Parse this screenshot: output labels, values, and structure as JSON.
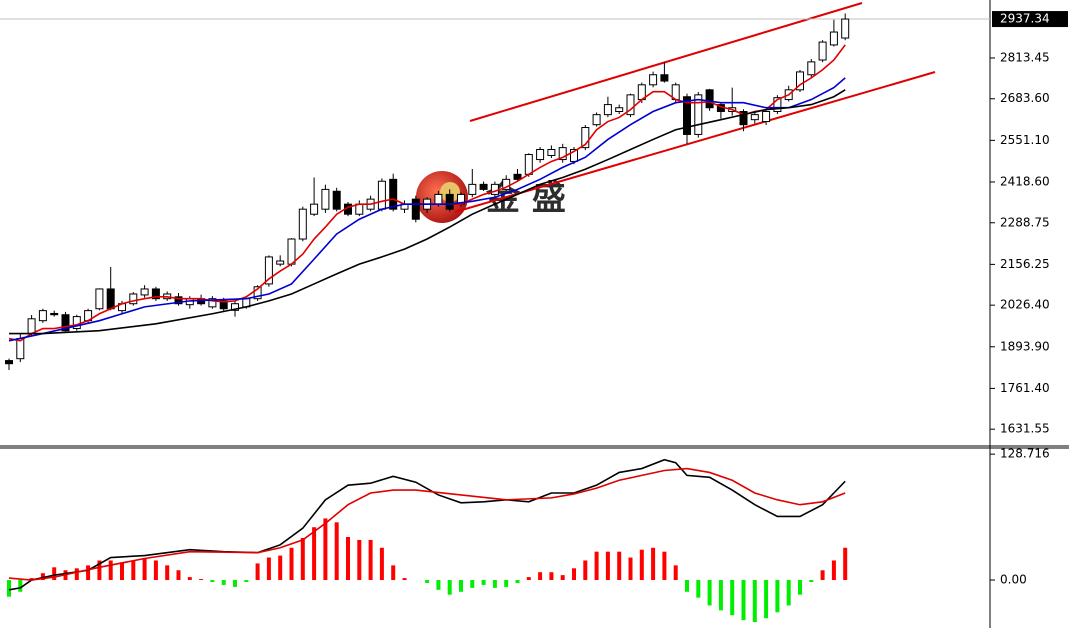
{
  "watermark": "金 盛",
  "chart_data": [
    {
      "type": "candlestick",
      "ylim": [
        1578,
        2998
      ],
      "yticks": [
        1631.55,
        {
          "value": 1761.4,
          "label": "1761.40"
        },
        {
          "value": 1893.9,
          "label": "1893.90"
        },
        {
          "value": 2026.4,
          "label": "2026.40"
        },
        2156.25,
        2288.75,
        {
          "value": 2418.6,
          "label": "2418.60"
        },
        {
          "value": 2551.1,
          "label": "2551.10"
        },
        {
          "value": 2683.6,
          "label": "2683.60"
        },
        2813.45
      ],
      "last_price": 2937.34,
      "up_color": "#ffffff",
      "down_color": "#000000",
      "ohlc": [
        [
          1850,
          1856,
          1820,
          1840
        ],
        [
          1856,
          1936,
          1845,
          1920
        ],
        [
          1936,
          1995,
          1930,
          1983
        ],
        [
          1977,
          2015,
          1970,
          2009
        ],
        [
          2000,
          2009,
          1990,
          1996
        ],
        [
          1996,
          2005,
          1940,
          1945
        ],
        [
          1952,
          1996,
          1945,
          1990
        ],
        [
          1977,
          2015,
          1970,
          2009
        ],
        [
          2015,
          2080,
          2010,
          2078
        ],
        [
          2078,
          2148,
          2010,
          2015
        ],
        [
          2009,
          2040,
          2000,
          2031
        ],
        [
          2031,
          2068,
          2025,
          2062
        ],
        [
          2059,
          2090,
          2050,
          2078
        ],
        [
          2078,
          2085,
          2040,
          2047
        ],
        [
          2047,
          2070,
          2040,
          2062
        ],
        [
          2053,
          2065,
          2025,
          2031
        ],
        [
          2028,
          2055,
          2015,
          2047
        ],
        [
          2047,
          2060,
          2025,
          2031
        ],
        [
          2021,
          2055,
          2015,
          2047
        ],
        [
          2040,
          2050,
          2005,
          2015
        ],
        [
          2010,
          2040,
          1990,
          2031
        ],
        [
          2021,
          2050,
          2015,
          2047
        ],
        [
          2047,
          2090,
          2040,
          2085
        ],
        [
          2094,
          2185,
          2085,
          2180
        ],
        [
          2157,
          2185,
          2150,
          2167
        ],
        [
          2157,
          2240,
          2150,
          2237
        ],
        [
          2237,
          2340,
          2230,
          2332
        ],
        [
          2316,
          2433,
          2310,
          2348
        ],
        [
          2332,
          2410,
          2320,
          2395
        ],
        [
          2389,
          2400,
          2325,
          2332
        ],
        [
          2348,
          2355,
          2310,
          2316
        ],
        [
          2316,
          2360,
          2310,
          2348
        ],
        [
          2332,
          2375,
          2325,
          2364
        ],
        [
          2332,
          2430,
          2325,
          2421
        ],
        [
          2427,
          2445,
          2325,
          2332
        ],
        [
          2332,
          2360,
          2320,
          2348
        ],
        [
          2364,
          2375,
          2290,
          2300
        ],
        [
          2332,
          2370,
          2320,
          2364
        ],
        [
          2348,
          2390,
          2340,
          2379
        ],
        [
          2379,
          2395,
          2325,
          2332
        ],
        [
          2348,
          2385,
          2340,
          2379
        ],
        [
          2379,
          2460,
          2370,
          2411
        ],
        [
          2411,
          2420,
          2390,
          2395
        ],
        [
          2379,
          2420,
          2370,
          2411
        ],
        [
          2395,
          2440,
          2390,
          2427
        ],
        [
          2443,
          2460,
          2420,
          2427
        ],
        [
          2443,
          2510,
          2435,
          2506
        ],
        [
          2490,
          2530,
          2480,
          2522
        ],
        [
          2503,
          2535,
          2495,
          2522
        ],
        [
          2490,
          2540,
          2480,
          2528
        ],
        [
          2484,
          2530,
          2475,
          2522
        ],
        [
          2528,
          2600,
          2520,
          2592
        ],
        [
          2601,
          2640,
          2595,
          2633
        ],
        [
          2633,
          2690,
          2625,
          2665
        ],
        [
          2643,
          2665,
          2635,
          2655
        ],
        [
          2633,
          2700,
          2625,
          2696
        ],
        [
          2681,
          2735,
          2670,
          2728
        ],
        [
          2728,
          2770,
          2720,
          2760
        ],
        [
          2760,
          2800,
          2735,
          2740
        ],
        [
          2681,
          2735,
          2670,
          2728
        ],
        [
          2690,
          2700,
          2540,
          2570
        ],
        [
          2570,
          2705,
          2560,
          2696
        ],
        [
          2712,
          2715,
          2645,
          2655
        ],
        [
          2665,
          2670,
          2620,
          2643
        ],
        [
          2643,
          2719,
          2630,
          2655
        ],
        [
          2643,
          2650,
          2580,
          2601
        ],
        [
          2617,
          2645,
          2605,
          2633
        ],
        [
          2611,
          2650,
          2600,
          2643
        ],
        [
          2643,
          2695,
          2635,
          2687
        ],
        [
          2681,
          2725,
          2675,
          2712
        ],
        [
          2712,
          2775,
          2705,
          2769
        ],
        [
          2760,
          2810,
          2750,
          2801
        ],
        [
          2807,
          2870,
          2800,
          2864
        ],
        [
          2855,
          2935,
          2850,
          2896
        ],
        [
          2877,
          2955,
          2870,
          2937.34
        ]
      ],
      "series": [
        {
          "color": "#e00000",
          "values": [
            1920,
            1913,
            1936,
            1952,
            1952,
            1958,
            1964,
            1977,
            1999,
            2015,
            2031,
            2040,
            2047,
            2053,
            2053,
            2047,
            2047,
            2047,
            2040,
            2037,
            2040,
            2053,
            2078,
            2110,
            2135,
            2157,
            2189,
            2237,
            2275,
            2316,
            2338,
            2348,
            2348,
            2357,
            2364,
            2348,
            2348,
            2348,
            2348,
            2348,
            2348,
            2364,
            2379,
            2389,
            2402,
            2421,
            2443,
            2465,
            2484,
            2497,
            2516,
            2538,
            2585,
            2611,
            2624,
            2649,
            2681,
            2706,
            2706,
            2681,
            2671,
            2671,
            2674,
            2658,
            2649,
            2633,
            2643,
            2649,
            2681,
            2696,
            2728,
            2750,
            2776,
            2807,
            2855
          ]
        },
        {
          "color": "#0000d0",
          "x": [
            0,
            3,
            8,
            12,
            16,
            21,
            23,
            25,
            27,
            29,
            31,
            33,
            35,
            37,
            39,
            41,
            43,
            45,
            47,
            49,
            51,
            53,
            55,
            57,
            59,
            61,
            63,
            65,
            67,
            69,
            71,
            73,
            74
          ],
          "values": [
            1913,
            1936,
            1977,
            2021,
            2040,
            2047,
            2062,
            2094,
            2173,
            2253,
            2300,
            2332,
            2348,
            2348,
            2348,
            2357,
            2370,
            2395,
            2427,
            2465,
            2497,
            2554,
            2601,
            2643,
            2671,
            2681,
            2671,
            2671,
            2655,
            2655,
            2681,
            2719,
            2750
          ]
        },
        {
          "color": "#000000",
          "x": [
            0,
            3,
            8,
            13,
            18,
            21,
            23,
            25,
            27,
            29,
            31,
            33,
            35,
            37,
            39,
            41,
            43,
            45,
            47,
            49,
            51,
            53,
            55,
            57,
            59,
            61,
            63,
            65,
            67,
            69,
            71,
            73,
            74
          ],
          "values": [
            1936,
            1936,
            1945,
            1967,
            1999,
            2021,
            2040,
            2062,
            2094,
            2126,
            2157,
            2180,
            2205,
            2237,
            2275,
            2316,
            2348,
            2379,
            2411,
            2433,
            2459,
            2490,
            2522,
            2554,
            2585,
            2601,
            2617,
            2633,
            2649,
            2655,
            2665,
            2690,
            2712
          ]
        }
      ]
    },
    {
      "type": "macd",
      "ylim": [
        -47,
        135
      ],
      "yticks": [
        128.716,
        {
          "value": 0,
          "label": "0.00"
        }
      ],
      "histogram": {
        "up_color": "#ff0000",
        "down_color": "#00ee00",
        "values": [
          -17,
          -12,
          2,
          7,
          13,
          10,
          12,
          15,
          20,
          20,
          18,
          20,
          22,
          20,
          15,
          10,
          3,
          1,
          -2,
          -5,
          -7,
          -2,
          17,
          23,
          25,
          33,
          43,
          54,
          63,
          59,
          44,
          41,
          41,
          33,
          15,
          2,
          0,
          -3,
          -10,
          -15,
          -12,
          -8,
          -5,
          -8,
          -7,
          -3,
          3,
          8,
          8,
          5,
          12,
          20,
          29,
          29,
          29,
          23,
          31,
          33,
          29,
          15,
          -12,
          -18,
          -26,
          -31,
          -36,
          -41,
          -43,
          -39,
          -33,
          -26,
          -15,
          -2,
          10,
          20,
          33
        ]
      },
      "series": [
        {
          "color": "#000000",
          "x": [
            0,
            1,
            2,
            4,
            7,
            9,
            12,
            16,
            19,
            22,
            24,
            26,
            28,
            30,
            32,
            34,
            36,
            38,
            40,
            42,
            44,
            46,
            48,
            50,
            52,
            54,
            56,
            58,
            59,
            60,
            62,
            64,
            66,
            68,
            70,
            72,
            74
          ],
          "values": [
            -10,
            -8,
            0,
            5,
            10,
            23,
            25,
            31,
            29,
            28,
            36,
            53,
            82,
            97,
            99,
            106,
            100,
            87,
            79,
            80,
            82,
            80,
            89,
            89,
            97,
            110,
            114,
            123,
            120,
            107,
            105,
            92,
            77,
            65,
            65,
            77,
            101
          ]
        },
        {
          "color": "#e00000",
          "x": [
            0,
            2,
            4,
            8,
            12,
            16,
            22,
            24,
            26,
            28,
            30,
            32,
            34,
            36,
            40,
            44,
            48,
            50,
            52,
            54,
            56,
            58,
            60,
            62,
            64,
            66,
            68,
            70,
            72,
            74
          ],
          "values": [
            2,
            0,
            3,
            13,
            22,
            29,
            28,
            33,
            41,
            58,
            77,
            89,
            92,
            92,
            87,
            82,
            84,
            88,
            94,
            102,
            107,
            112,
            114,
            110,
            102,
            89,
            82,
            77,
            80,
            89
          ]
        }
      ]
    }
  ]
}
